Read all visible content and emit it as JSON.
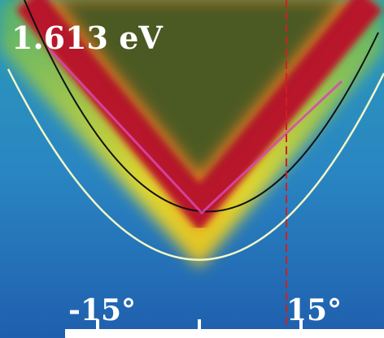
{
  "energy_label": "1.613 eV",
  "angle_labels": [
    "-15°",
    "15°"
  ]
}
